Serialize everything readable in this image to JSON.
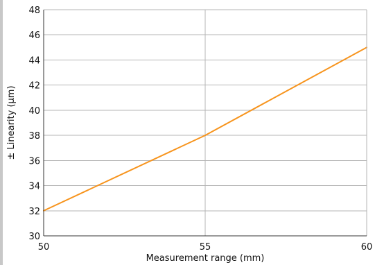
{
  "chart_data": {
    "type": "line",
    "xlabel": "Measurement range (mm)",
    "ylabel": "± Linearity (µm)",
    "xlim": [
      50,
      60
    ],
    "ylim": [
      30,
      48
    ],
    "x_ticks": [
      50,
      55,
      60
    ],
    "y_ticks": [
      30,
      32,
      34,
      36,
      38,
      40,
      42,
      44,
      46,
      48
    ],
    "grid": true,
    "series": [
      {
        "x": [
          50,
          55,
          60
        ],
        "y": [
          32,
          38,
          45
        ],
        "color": "#f7941d"
      }
    ]
  },
  "colors": {
    "grid": "#b4b4b4",
    "axis": "#333333",
    "line": "#f7941d"
  }
}
